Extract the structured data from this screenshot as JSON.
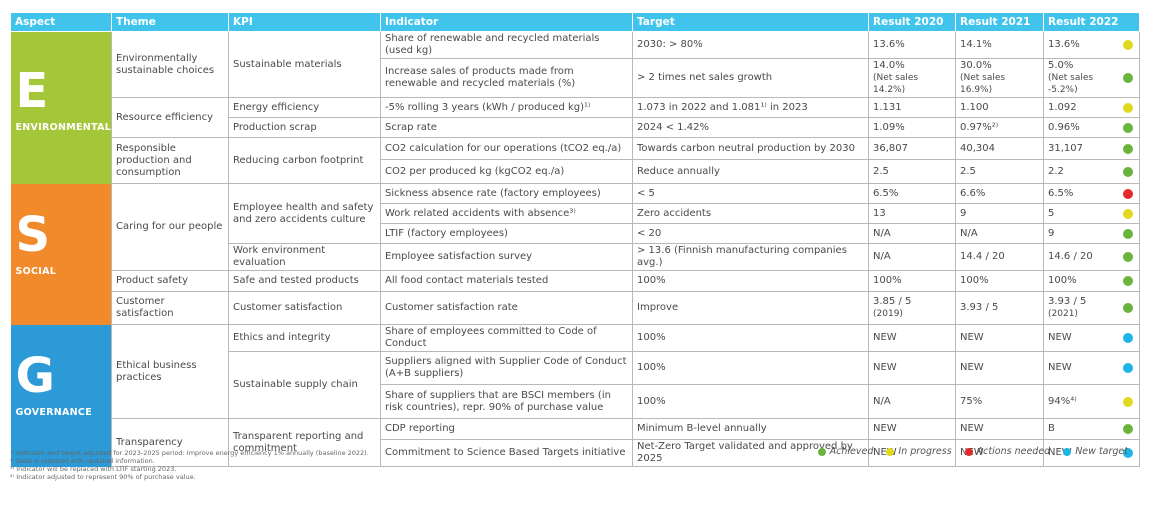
{
  "colors": {
    "header_bg": "#41c4ec",
    "aspect_E": "#a4c639",
    "aspect_S": "#f08a2a",
    "aspect_G": "#2b9ad6",
    "green": "#6ab43e",
    "yellow": "#e0da1f",
    "red": "#e32b2b",
    "blue": "#1fb5e6"
  },
  "header": {
    "aspect": "Aspect",
    "theme": "Theme",
    "kpi": "KPI",
    "indicator": "Indicator",
    "target": "Target",
    "result2020": "Result 2020",
    "result2021": "Result 2021",
    "result2022": "Result 2022"
  },
  "aspects": [
    {
      "letter": "E",
      "name": "ENVIRONMENTAL"
    },
    {
      "letter": "S",
      "name": "SOCIAL"
    },
    {
      "letter": "G",
      "name": "GOVERNANCE"
    }
  ],
  "themes": [
    "Environmentally sustainable choices",
    "Resource efficiency",
    "Responsible production and consumption",
    "Caring for our people",
    "Product safety",
    "Customer satisfaction",
    "Ethical business practices",
    "Transparency"
  ],
  "kpis": [
    "Sustainable materials",
    "Energy efficiency",
    "Production scrap",
    "Reducing carbon footprint",
    "Employee health and safety and zero accidents culture",
    "Work environment evaluation",
    "Safe and tested products",
    "Customer satisfaction",
    "Ethics and integrity",
    "Sustainable supply chain",
    "Transparent reporting and commitment"
  ],
  "rows": [
    {
      "indicator": "Share of renewable and recycled materials (used kg)",
      "target": "2030: > 80%",
      "r2020": "13.6%",
      "r2021": "14.1%",
      "r2022": "13.6%",
      "status": "yellow"
    },
    {
      "indicator": "Increase sales of products made from renewable and recycled materials (%)",
      "target": "> 2 times net sales growth",
      "r2020": "14.0%",
      "r2020_sub": "(Net sales 14.2%)",
      "r2021": "30.0%",
      "r2021_sub": "(Net sales 16.9%)",
      "r2022": "5.0%",
      "r2022_sub": "(Net sales -5.2%)",
      "status": "green"
    },
    {
      "indicator": "-5% rolling 3 years (kWh / produced kg)¹⁾",
      "target": "1.073 in 2022 and 1.081¹⁾ in 2023",
      "r2020": "1.131",
      "r2021": "1.100",
      "r2022": "1.092",
      "status": "yellow"
    },
    {
      "indicator": "Scrap rate",
      "target": "2024 < 1.42%",
      "r2020": "1.09%",
      "r2021": "0.97%²⁾",
      "r2022": "0.96%",
      "status": "green"
    },
    {
      "indicator": "CO2 calculation for our operations (tCO2 eq./a)",
      "target": "Towards carbon neutral production by 2030",
      "r2020": "36,807",
      "r2021": "40,304",
      "r2022": "31,107",
      "status": "green"
    },
    {
      "indicator": "CO2 per produced kg (kgCO2 eq./a)",
      "target": "Reduce annually",
      "r2020": "2.5",
      "r2021": "2.5",
      "r2022": "2.2",
      "status": "green"
    },
    {
      "indicator": "Sickness absence rate (factory employees)",
      "target": "< 5",
      "r2020": "6.5%",
      "r2021": "6.6%",
      "r2022": "6.5%",
      "status": "red"
    },
    {
      "indicator": "Work related accidents with absence³⁾",
      "target": "Zero accidents",
      "r2020": "13",
      "r2021": "9",
      "r2022": "5",
      "status": "yellow"
    },
    {
      "indicator": "LTIF (factory employees)",
      "target": "< 20",
      "r2020": "N/A",
      "r2021": "N/A",
      "r2022": "9",
      "status": "green"
    },
    {
      "indicator": "Employee satisfaction survey",
      "target": "> 13.6 (Finnish manufacturing companies avg.)",
      "r2020": "N/A",
      "r2021": "14.4 / 20",
      "r2022": "14.6 / 20",
      "status": "green"
    },
    {
      "indicator": "All food contact materials tested",
      "target": "100%",
      "r2020": "100%",
      "r2021": "100%",
      "r2022": "100%",
      "status": "green"
    },
    {
      "indicator": "Customer satisfaction rate",
      "target": "Improve",
      "r2020": "3.85 / 5",
      "r2020_sub": "(2019)",
      "r2021": "3.93 / 5",
      "r2022": "3.93 / 5",
      "r2022_sub": "(2021)",
      "status": "green"
    },
    {
      "indicator": "Share of employees committed to Code of Conduct",
      "target": "100%",
      "r2020": "NEW",
      "r2021": "NEW",
      "r2022": "NEW",
      "status": "blue"
    },
    {
      "indicator": "Suppliers aligned with Supplier Code of Conduct (A+B suppliers)",
      "target": "100%",
      "r2020": "NEW",
      "r2021": "NEW",
      "r2022": "NEW",
      "status": "blue"
    },
    {
      "indicator": "Share of suppliers that are BSCI members (in risk countries), repr. 90% of purchase value",
      "target": "100%",
      "r2020": "N/A",
      "r2021": "75%",
      "r2022": "94%⁴⁾",
      "status": "yellow"
    },
    {
      "indicator": "CDP reporting",
      "target": "Minimum B-level annually",
      "r2020": "NEW",
      "r2021": "NEW",
      "r2022": "B",
      "status": "green"
    },
    {
      "indicator": "Commitment to Science Based Targets initiative",
      "target": "Net-Zero Target validated and approved by 2025",
      "r2020": "NEW",
      "r2021": "NEW",
      "r2022": "NEW",
      "status": "blue"
    }
  ],
  "legend": [
    {
      "label": "Achieved",
      "color": "#6ab43e"
    },
    {
      "label": "In progress",
      "color": "#e0da1f"
    },
    {
      "label": "Actions needed",
      "color": "#e32b2b"
    },
    {
      "label": "New target",
      "color": "#1fb5e6"
    }
  ],
  "footnotes": [
    "¹⁾ Indicator and target adjusted for 2023-2025 period: Improve energy efficiency 1% annually (baseline 2022).",
    "²⁾ Data is restated with updated information.",
    "³⁾ Indicator will be replaced with LTIF starting 2023.",
    "⁴⁾ Indicator adjusted to represent 90% of purchase value."
  ]
}
